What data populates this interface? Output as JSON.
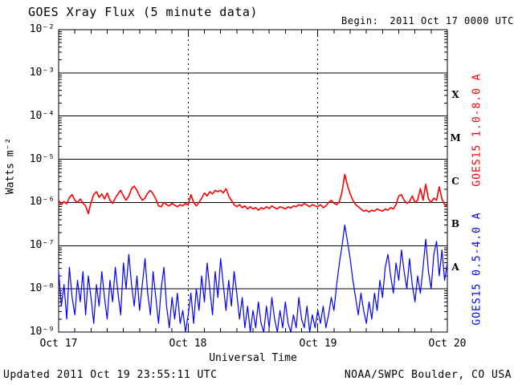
{
  "header": {
    "title": "GOES Xray Flux (5 minute data)",
    "begin_label": "Begin:",
    "begin_value": "2011 Oct 17 0000 UTC"
  },
  "footer": {
    "updated": "Updated 2011 Oct 19 23:55:11 UTC",
    "source": "NOAA/SWPC Boulder, CO USA"
  },
  "chart_data": {
    "type": "line",
    "title": "GOES Xray Flux (5 minute data)",
    "subtitle": "Begin:  2011 Oct 17 0000 UTC",
    "xlabel": "Universal Time",
    "ylabel": "Watts m⁻²",
    "x_tick_labels": [
      "Oct 17",
      "Oct 18",
      "Oct 19",
      "Oct 20"
    ],
    "x_range_hours": [
      0,
      72
    ],
    "x_minor_tick_hours": 3,
    "y_scale": "log10",
    "y_log_range": [
      -9,
      -2
    ],
    "y_tick_labels": [
      "10⁻²",
      "10⁻³",
      "10⁻⁴",
      "10⁻⁵",
      "10⁻⁶",
      "10⁻⁷",
      "10⁻⁸",
      "10⁻⁹"
    ],
    "y_tick_exponents": [
      -2,
      -3,
      -4,
      -5,
      -6,
      -7,
      -8,
      -9
    ],
    "grid_decades": [
      -3,
      -4,
      -5,
      -6,
      -7,
      -8
    ],
    "day_gridlines_hours": [
      24,
      48
    ],
    "flare_class_letters": [
      {
        "label": "X",
        "log_center": -3.5
      },
      {
        "label": "M",
        "log_center": -4.5
      },
      {
        "label": "C",
        "log_center": -5.5
      },
      {
        "label": "B",
        "log_center": -6.5
      },
      {
        "label": "A",
        "log_center": -7.5
      }
    ],
    "colors": {
      "long_channel": "#ff0000",
      "short_channel": "#0000ff",
      "axis": "#000000",
      "background": "#ffffff"
    },
    "series": [
      {
        "name": "GOES15 long (1.0-8.0 A)",
        "label": "GOES15 1.0-8.0 A",
        "color": "#ff0000",
        "t_start_hours": 0,
        "t_step_hours": 0.5,
        "units": "log10 Watts m-2",
        "log10_flux": [
          -5.95,
          -6.05,
          -5.98,
          -6.03,
          -5.88,
          -5.82,
          -5.95,
          -6.0,
          -5.92,
          -6.02,
          -6.08,
          -6.26,
          -6.0,
          -5.82,
          -5.75,
          -5.88,
          -5.8,
          -5.92,
          -5.78,
          -5.95,
          -6.02,
          -5.9,
          -5.8,
          -5.72,
          -5.85,
          -5.95,
          -5.85,
          -5.68,
          -5.62,
          -5.72,
          -5.85,
          -5.95,
          -5.9,
          -5.78,
          -5.72,
          -5.8,
          -5.92,
          -6.08,
          -6.1,
          -6.0,
          -6.05,
          -6.08,
          -6.02,
          -6.06,
          -6.1,
          -6.05,
          -6.08,
          -6.02,
          -6.06,
          -5.82,
          -6.0,
          -6.08,
          -6.0,
          -5.9,
          -5.78,
          -5.85,
          -5.75,
          -5.8,
          -5.72,
          -5.75,
          -5.72,
          -5.78,
          -5.68,
          -5.85,
          -5.95,
          -6.05,
          -6.1,
          -6.05,
          -6.12,
          -6.08,
          -6.15,
          -6.1,
          -6.15,
          -6.12,
          -6.18,
          -6.12,
          -6.15,
          -6.1,
          -6.14,
          -6.08,
          -6.12,
          -6.15,
          -6.1,
          -6.12,
          -6.15,
          -6.1,
          -6.13,
          -6.08,
          -6.1,
          -6.05,
          -6.08,
          -6.02,
          -6.06,
          -6.1,
          -6.05,
          -6.08,
          -6.1,
          -6.05,
          -6.12,
          -6.08,
          -6.0,
          -5.95,
          -6.02,
          -6.05,
          -5.98,
          -5.75,
          -5.35,
          -5.6,
          -5.8,
          -5.95,
          -6.05,
          -6.1,
          -6.15,
          -6.2,
          -6.18,
          -6.22,
          -6.18,
          -6.2,
          -6.15,
          -6.18,
          -6.2,
          -6.15,
          -6.18,
          -6.12,
          -6.15,
          -6.05,
          -5.85,
          -5.82,
          -5.95,
          -6.02,
          -5.98,
          -5.85,
          -6.0,
          -5.95,
          -5.68,
          -5.95,
          -5.58,
          -5.92,
          -6.0,
          -5.9,
          -5.95,
          -5.64,
          -5.92,
          -6.05,
          -6.1
        ]
      },
      {
        "name": "GOES15 short (0.5-4.0 A)",
        "label": "GOES15 0.5-4.0 A",
        "color": "#0000ff",
        "t_start_hours": 0,
        "t_step_hours": 0.5,
        "units": "log10 Watts m-2",
        "log10_flux": [
          -7.6,
          -8.4,
          -7.9,
          -8.7,
          -7.5,
          -8.2,
          -8.6,
          -7.8,
          -8.3,
          -7.6,
          -8.6,
          -7.7,
          -8.2,
          -8.8,
          -7.9,
          -8.4,
          -7.6,
          -8.2,
          -8.7,
          -7.8,
          -8.3,
          -7.5,
          -8.1,
          -8.6,
          -7.4,
          -8.0,
          -7.2,
          -7.9,
          -8.4,
          -7.7,
          -8.5,
          -7.9,
          -7.3,
          -8.1,
          -8.6,
          -7.6,
          -8.2,
          -8.8,
          -8.0,
          -7.5,
          -8.4,
          -8.9,
          -8.2,
          -8.7,
          -8.1,
          -8.8,
          -8.5,
          -9.0,
          -8.6,
          -8.1,
          -8.8,
          -8.0,
          -8.5,
          -7.7,
          -8.3,
          -7.4,
          -8.0,
          -8.6,
          -7.6,
          -8.2,
          -7.3,
          -7.9,
          -8.5,
          -7.8,
          -8.4,
          -7.6,
          -8.1,
          -8.7,
          -8.2,
          -8.9,
          -8.4,
          -9.0,
          -8.5,
          -8.9,
          -8.3,
          -8.8,
          -9.0,
          -8.4,
          -8.9,
          -8.2,
          -8.7,
          -9.0,
          -8.5,
          -8.9,
          -8.3,
          -8.8,
          -9.0,
          -8.6,
          -8.9,
          -8.2,
          -8.7,
          -8.9,
          -8.4,
          -9.0,
          -8.6,
          -8.9,
          -8.5,
          -8.8,
          -8.4,
          -8.9,
          -8.6,
          -8.2,
          -8.5,
          -7.9,
          -7.4,
          -7.0,
          -6.52,
          -6.9,
          -7.3,
          -7.8,
          -8.2,
          -8.6,
          -8.1,
          -8.5,
          -8.8,
          -8.3,
          -8.7,
          -8.1,
          -8.5,
          -7.8,
          -8.2,
          -7.5,
          -7.2,
          -7.7,
          -8.1,
          -7.4,
          -7.8,
          -7.1,
          -7.6,
          -8.0,
          -7.3,
          -7.9,
          -8.3,
          -7.7,
          -8.1,
          -7.5,
          -6.85,
          -7.6,
          -8.0,
          -7.2,
          -6.9,
          -7.7,
          -7.1,
          -7.8,
          -7.4
        ]
      }
    ]
  }
}
